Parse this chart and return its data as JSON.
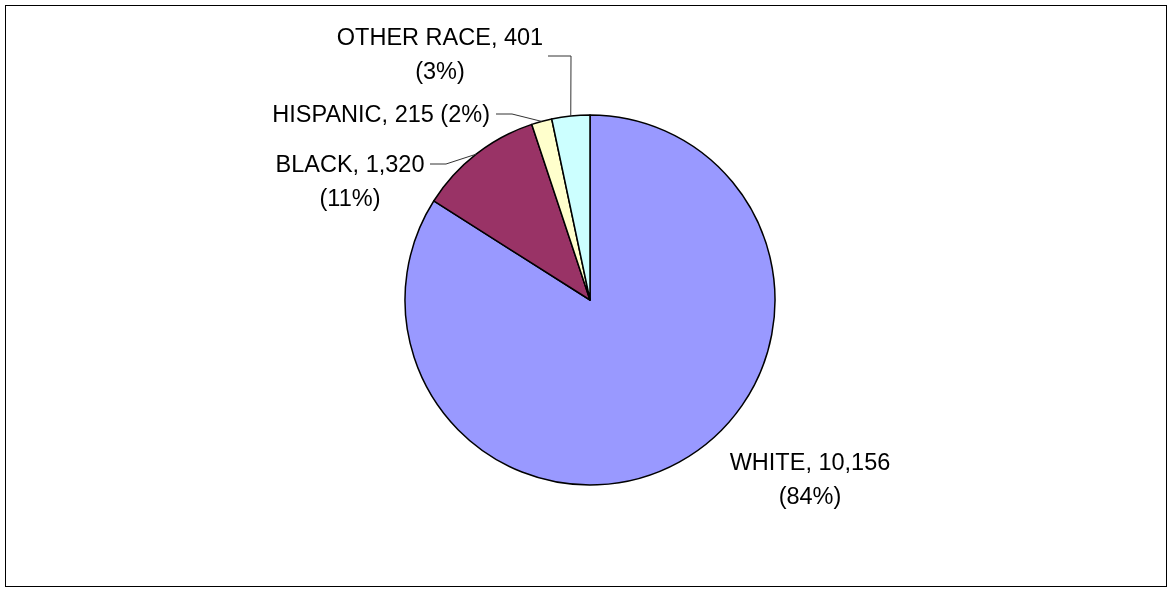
{
  "chart_data": {
    "type": "pie",
    "values": [
      10156,
      1320,
      215,
      401
    ],
    "colors": [
      "#9999ff",
      "#993366",
      "#ffffcc",
      "#ccffff"
    ],
    "value_labels": [
      "WHITE, 10,156 (84%)",
      "BLACK, 1,320 (11%)",
      "HISPANIC, 215 (2%)",
      "OTHER RACE, 401 (3%)"
    ]
  }
}
